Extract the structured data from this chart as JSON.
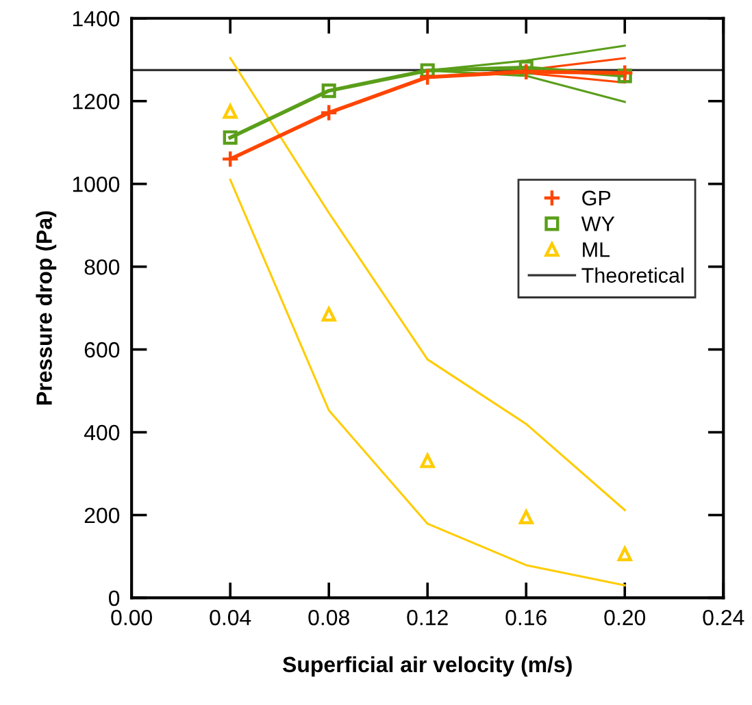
{
  "chart_data": {
    "type": "line",
    "xlabel": "Superficial air velocity (m/s)",
    "ylabel": "Pressure drop (Pa)",
    "x": [
      0.04,
      0.08,
      0.12,
      0.16,
      0.2
    ],
    "series": [
      {
        "name": "GP",
        "color": "#ff4500",
        "marker": "cross",
        "values": [
          1060,
          1172,
          1258,
          1271,
          1268
        ]
      },
      {
        "name": "WY",
        "color": "#5a9e1a",
        "marker": "square",
        "values": [
          1112,
          1225,
          1274,
          1281,
          1261
        ]
      },
      {
        "name": "ML",
        "color": "#ffcc00",
        "type": "scatter",
        "marker": "triangle",
        "values": [
          1175,
          685,
          331,
          195,
          106
        ]
      },
      {
        "color": "#ff4500",
        "x": [
          0.12,
          0.16,
          0.2
        ],
        "values": [
          1258,
          1268,
          1245
        ]
      },
      {
        "color": "#ff4500",
        "x": [
          0.12,
          0.16,
          0.2
        ],
        "values": [
          1258,
          1275,
          1304
        ]
      },
      {
        "color": "#5a9e1a",
        "x": [
          0.12,
          0.16,
          0.2
        ],
        "values": [
          1274,
          1261,
          1198
        ]
      },
      {
        "color": "#5a9e1a",
        "x": [
          0.12,
          0.16,
          0.2
        ],
        "values": [
          1274,
          1298,
          1334
        ]
      },
      {
        "color": "#ffcc00",
        "values": [
          1010,
          453,
          179,
          79,
          30
        ]
      },
      {
        "color": "#ffcc00",
        "values": [
          1304,
          930,
          576,
          420,
          212
        ]
      }
    ],
    "ref_lines": [
      {
        "axis": "y",
        "value": 1275,
        "label": "Theoretical",
        "color": "#333333",
        "line_style": "solid"
      }
    ],
    "xlim": [
      0,
      0.24
    ],
    "xticks": [
      {
        "value": 0,
        "label": "0.00"
      },
      {
        "value": 0.04,
        "label": "0.04"
      },
      {
        "value": 0.08,
        "label": "0.08"
      },
      {
        "value": 0.12,
        "label": "0.12"
      },
      {
        "value": 0.16,
        "label": "0.16"
      },
      {
        "value": 0.2,
        "label": "0.20"
      },
      {
        "value": 0.24,
        "label": "0.24"
      }
    ],
    "ylim": [
      0,
      1400
    ],
    "yticks": [
      0,
      200,
      400,
      600,
      800,
      1000,
      1200,
      1400
    ],
    "grid": false,
    "legend": "right"
  }
}
